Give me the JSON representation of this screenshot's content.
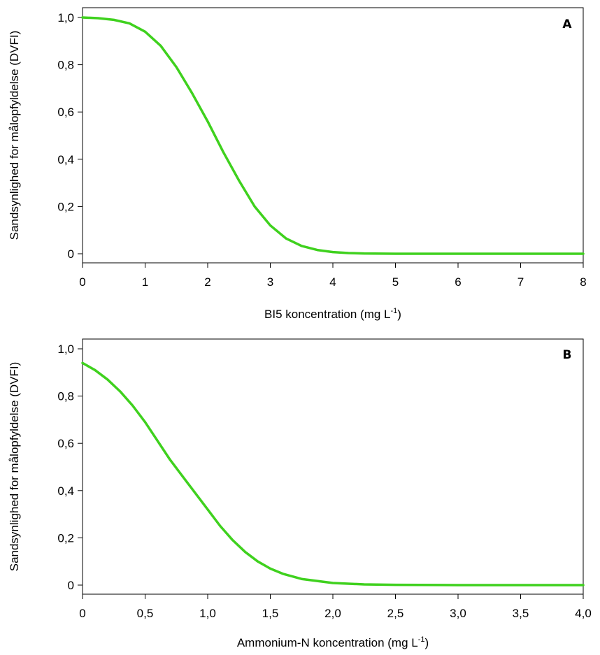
{
  "chart_data": [
    {
      "type": "line",
      "panel_label": "A",
      "xlabel": "BI5 koncentration (mg L",
      "xlabel_sup": "-1",
      "xlabel_end": ")",
      "ylabel": "Sandsynlighed for målopfyldelse (DVFI)",
      "xlim": [
        0,
        8
      ],
      "ylim": [
        0,
        1
      ],
      "x_ticks": [
        0,
        1,
        2,
        3,
        4,
        5,
        6,
        7,
        8
      ],
      "x_tick_labels": [
        "0",
        "1",
        "2",
        "3",
        "4",
        "5",
        "6",
        "7",
        "8"
      ],
      "y_ticks": [
        0,
        0.2,
        0.4,
        0.6,
        0.8,
        1.0
      ],
      "y_tick_labels": [
        "0",
        "0,2",
        "0,4",
        "0,6",
        "0,8",
        "1,0"
      ],
      "grid": false,
      "line_color": "#3fd11e",
      "series": [
        {
          "x": [
            0,
            0.25,
            0.5,
            0.75,
            1.0,
            1.25,
            1.5,
            1.75,
            2.0,
            2.25,
            2.5,
            2.75,
            3.0,
            3.25,
            3.5,
            3.75,
            4.0,
            4.25,
            4.5,
            5.0,
            5.5,
            6.0,
            7.0,
            8.0
          ],
          "y": [
            1.0,
            0.997,
            0.99,
            0.975,
            0.94,
            0.88,
            0.79,
            0.68,
            0.56,
            0.43,
            0.31,
            0.2,
            0.12,
            0.065,
            0.033,
            0.016,
            0.007,
            0.003,
            0.001,
            0.0,
            0.0,
            0.0,
            0.0,
            0.0
          ]
        }
      ]
    },
    {
      "type": "line",
      "panel_label": "B",
      "xlabel": "Ammonium-N koncentration (mg L",
      "xlabel_sup": "-1",
      "xlabel_end": ")",
      "ylabel": "Sandsynlighed for målopfyldelse (DVFI)",
      "xlim": [
        0,
        4
      ],
      "ylim": [
        0,
        1
      ],
      "x_ticks": [
        0,
        0.5,
        1.0,
        1.5,
        2.0,
        2.5,
        3.0,
        3.5,
        4.0
      ],
      "x_tick_labels": [
        "0",
        "0,5",
        "1,0",
        "1,5",
        "2,0",
        "2,5",
        "3,0",
        "3,5",
        "4,0"
      ],
      "y_ticks": [
        0,
        0.2,
        0.4,
        0.6,
        0.8,
        1.0
      ],
      "y_tick_labels": [
        "0",
        "0,2",
        "0,4",
        "0,6",
        "0,8",
        "1,0"
      ],
      "grid": false,
      "line_color": "#3fd11e",
      "series": [
        {
          "x": [
            0,
            0.1,
            0.2,
            0.3,
            0.4,
            0.5,
            0.6,
            0.7,
            0.8,
            0.9,
            1.0,
            1.1,
            1.2,
            1.3,
            1.4,
            1.5,
            1.6,
            1.75,
            2.0,
            2.25,
            2.5,
            3.0,
            3.5,
            4.0
          ],
          "y": [
            0.94,
            0.91,
            0.87,
            0.82,
            0.76,
            0.69,
            0.61,
            0.53,
            0.46,
            0.39,
            0.32,
            0.25,
            0.19,
            0.14,
            0.1,
            0.07,
            0.048,
            0.026,
            0.009,
            0.003,
            0.001,
            0.0,
            0.0,
            0.0
          ]
        }
      ]
    }
  ]
}
